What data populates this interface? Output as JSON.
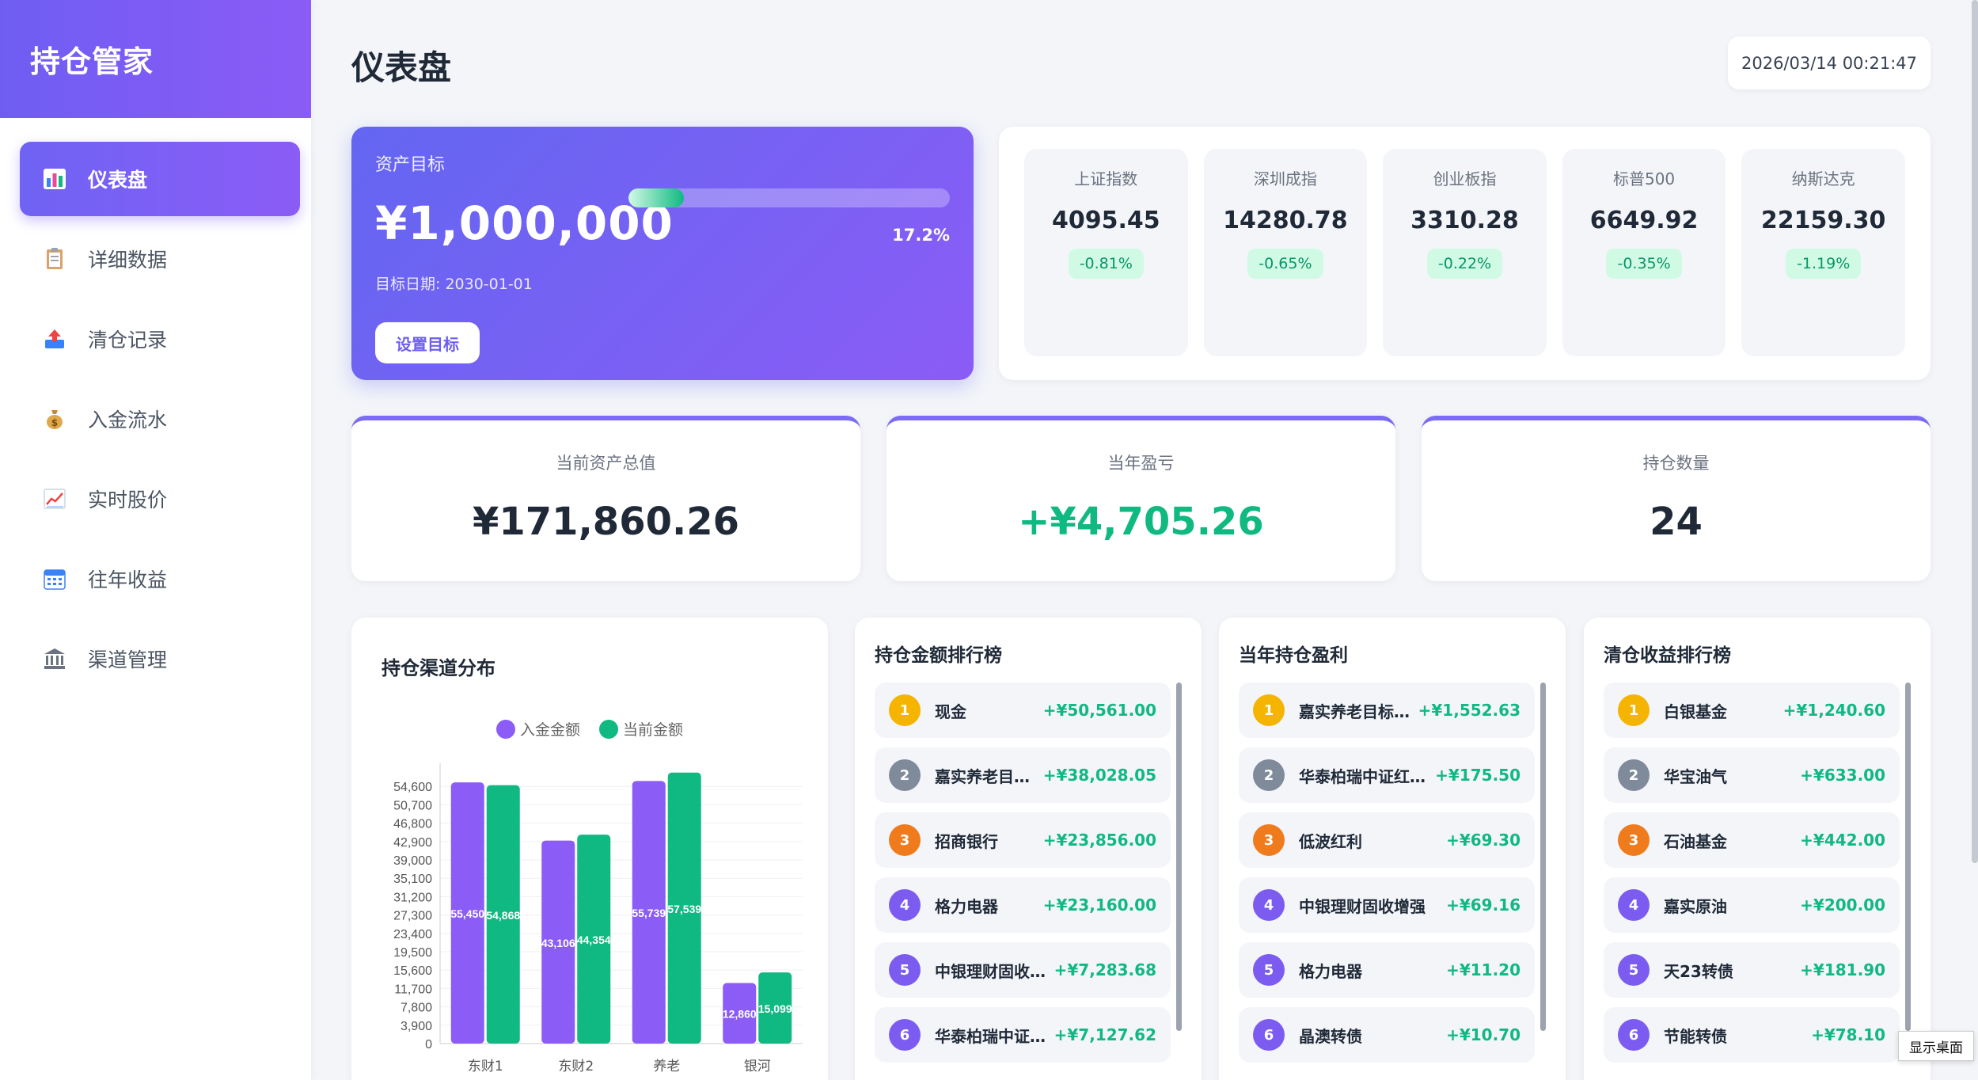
{
  "app": {
    "title": "持仓管家"
  },
  "sidebar": {
    "items": [
      {
        "label": "仪表盘",
        "icon": "bar-chart-icon",
        "active": true
      },
      {
        "label": "详细数据",
        "icon": "clipboard-icon"
      },
      {
        "label": "清仓记录",
        "icon": "outbox-icon"
      },
      {
        "label": "入金流水",
        "icon": "money-bag-icon"
      },
      {
        "label": "实时股价",
        "icon": "trend-chart-icon"
      },
      {
        "label": "往年收益",
        "icon": "calendar-icon"
      },
      {
        "label": "渠道管理",
        "icon": "bank-icon"
      }
    ]
  },
  "header": {
    "title": "仪表盘",
    "datetime": "2026/03/14 00:21:47"
  },
  "goal": {
    "label": "资产目标",
    "amount": "¥1,000,000",
    "date": "目标日期: 2030-01-01",
    "button": "设置目标",
    "progress": 0.172,
    "progress_text": "17.2%"
  },
  "indices": [
    {
      "name": "上证指数",
      "value": "4095.45",
      "change": "-0.81%"
    },
    {
      "name": "深圳成指",
      "value": "14280.78",
      "change": "-0.65%"
    },
    {
      "name": "创业板指",
      "value": "3310.28",
      "change": "-0.22%"
    },
    {
      "name": "标普500",
      "value": "6649.92",
      "change": "-0.35%"
    },
    {
      "name": "纳斯达克",
      "value": "22159.30",
      "change": "-1.19%"
    }
  ],
  "stats": [
    {
      "label": "当前资产总值",
      "value": "¥171,860.26"
    },
    {
      "label": "当年盈亏",
      "value": "+¥4,705.26"
    },
    {
      "label": "持仓数量",
      "value": "24"
    }
  ],
  "chart_title": "持仓渠道分布",
  "chart_data": {
    "type": "bar",
    "categories": [
      "东财1",
      "东财2",
      "养老",
      "银河"
    ],
    "series": [
      {
        "name": "入金金额",
        "values": [
          55450,
          43106,
          55739,
          12860
        ],
        "labels": [
          "55,450",
          "43,106",
          "55,739",
          "12,860"
        ],
        "color": "#8b5cf6"
      },
      {
        "name": "当前金额",
        "values": [
          54868,
          44354,
          57539,
          15099
        ],
        "labels": [
          "54,868",
          "44,354",
          "57,539",
          "15,099"
        ],
        "color": "#10b981"
      }
    ],
    "yticks": [
      "0",
      "3,900",
      "7,800",
      "11,700",
      "15,600",
      "19,500",
      "23,400",
      "27,300",
      "31,200",
      "35,100",
      "39,000",
      "42,900",
      "46,800",
      "50,700",
      "54,600"
    ],
    "ylim": [
      0,
      58500
    ],
    "legend": "top-center",
    "grid": true
  },
  "rank_holdings": {
    "title": "持仓金额排行榜",
    "items": [
      {
        "rank": "1",
        "name": "现金",
        "value": "+¥50,561.00"
      },
      {
        "rank": "2",
        "name": "嘉实养老目标...",
        "value": "+¥38,028.05"
      },
      {
        "rank": "3",
        "name": "招商银行",
        "value": "+¥23,856.00"
      },
      {
        "rank": "4",
        "name": "格力电器",
        "value": "+¥23,160.00"
      },
      {
        "rank": "5",
        "name": "中银理财固收...",
        "value": "+¥7,283.68"
      },
      {
        "rank": "6",
        "name": "华泰柏瑞中证...",
        "value": "+¥7,127.62"
      }
    ]
  },
  "rank_profit": {
    "title": "当年持仓盈利",
    "items": [
      {
        "rank": "1",
        "name": "嘉实养老目标2...",
        "value": "+¥1,552.63"
      },
      {
        "rank": "2",
        "name": "华泰柏瑞中证红...",
        "value": "+¥175.50"
      },
      {
        "rank": "3",
        "name": "低波红利",
        "value": "+¥69.30"
      },
      {
        "rank": "4",
        "name": "中银理财固收增强",
        "value": "+¥69.16"
      },
      {
        "rank": "5",
        "name": "格力电器",
        "value": "+¥11.20"
      },
      {
        "rank": "6",
        "name": "晶澳转债",
        "value": "+¥10.70"
      }
    ]
  },
  "rank_clear": {
    "title": "清仓收益排行榜",
    "items": [
      {
        "rank": "1",
        "name": "白银基金",
        "value": "+¥1,240.60"
      },
      {
        "rank": "2",
        "name": "华宝油气",
        "value": "+¥633.00"
      },
      {
        "rank": "3",
        "name": "石油基金",
        "value": "+¥442.00"
      },
      {
        "rank": "4",
        "name": "嘉实原油",
        "value": "+¥200.00"
      },
      {
        "rank": "5",
        "name": "天23转债",
        "value": "+¥181.90"
      },
      {
        "rank": "6",
        "name": "节能转债",
        "value": "+¥78.10"
      }
    ]
  },
  "tooltip": "显示桌面"
}
